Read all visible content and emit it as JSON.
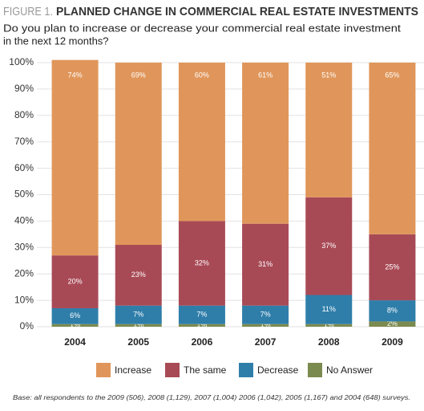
{
  "chart_data": {
    "type": "stacked_bar",
    "figure_label": "FIGURE 1.",
    "title": "PLANNED CHANGE IN COMMERCIAL REAL ESTATE INVESTMENTS",
    "subtitle": [
      "Do you plan to increase or decrease your commercial real estate investment",
      "in the next 12 months?"
    ],
    "footnote": "Base: all respondents to the 2009 (506), 2008 (1,129), 2007 (1,004) 2006 (1,042), 2005 (1,167) and 2004 (648) surveys.",
    "categories": [
      "2004",
      "2005",
      "2006",
      "2007",
      "2008",
      "2009"
    ],
    "series": [
      {
        "name": "Increase",
        "color": "#e0965a",
        "values": [
          74,
          69,
          60,
          61,
          51,
          65
        ],
        "value_labels": [
          "74%",
          "69%",
          "60%",
          "61%",
          "51%",
          "65%"
        ]
      },
      {
        "name": "The same",
        "color": "#a84a56",
        "values": [
          20,
          23,
          32,
          31,
          37,
          25
        ],
        "value_labels": [
          "20%",
          "23%",
          "32%",
          "31%",
          "37%",
          "25%"
        ]
      },
      {
        "name": "Decrease",
        "color": "#2f7eaa",
        "values": [
          6,
          7,
          7,
          7,
          11,
          8
        ],
        "value_labels": [
          "6%",
          "7%",
          "7%",
          "7%",
          "11%",
          "8%"
        ]
      },
      {
        "name": "No Answer",
        "color": "#7b8a4f",
        "values": [
          1,
          1,
          1,
          1,
          1,
          2
        ],
        "value_labels": [
          "1%",
          "1%",
          "1%",
          "1%",
          "1%",
          "2%"
        ]
      }
    ],
    "ylim": [
      0,
      100
    ],
    "yticks": [
      {
        "value": 0,
        "label": "0%"
      },
      {
        "value": 10,
        "label": "10%"
      },
      {
        "value": 20,
        "label": "20%"
      },
      {
        "value": 30,
        "label": "30%"
      },
      {
        "value": 40,
        "label": "40%"
      },
      {
        "value": 50,
        "label": "50%"
      },
      {
        "value": 60,
        "label": "60%"
      },
      {
        "value": 70,
        "label": "70%"
      },
      {
        "value": 80,
        "label": "80%"
      },
      {
        "value": 90,
        "label": "90%"
      },
      {
        "value": 100,
        "label": "100%"
      }
    ],
    "grid": true,
    "legend": "bottom"
  }
}
